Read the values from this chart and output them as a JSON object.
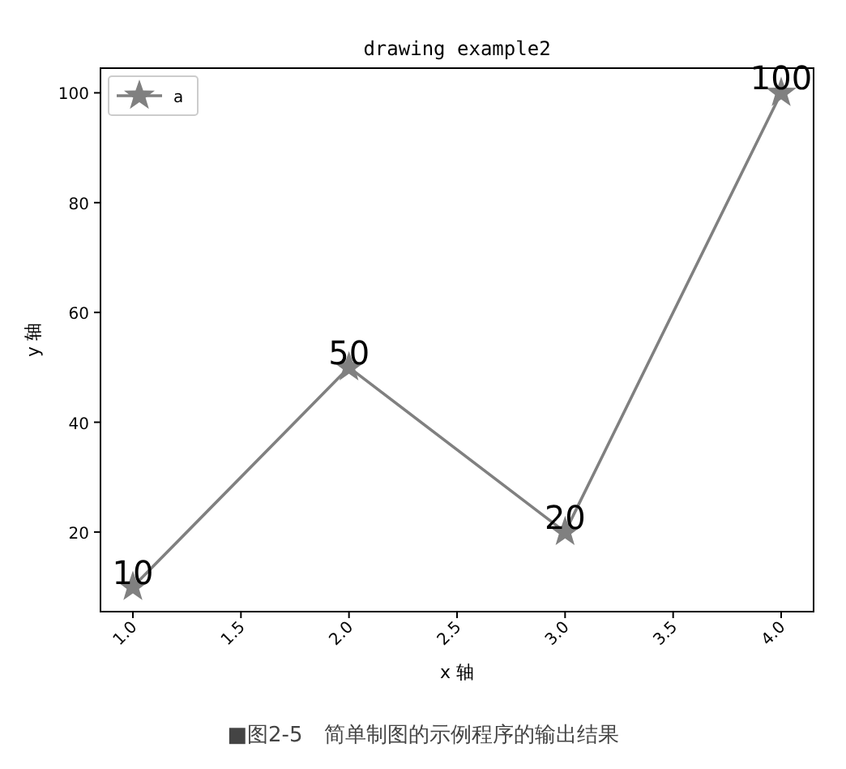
{
  "chart_data": {
    "type": "line",
    "title": "drawing example2",
    "xlabel": "x 轴",
    "ylabel": "y 轴",
    "x": [
      1,
      2,
      3,
      4
    ],
    "series": [
      {
        "name": "a",
        "color": "#808080",
        "values": [
          10,
          50,
          20,
          100
        ]
      }
    ],
    "data_labels": true,
    "marker": "star",
    "line_style": "solid",
    "legend": "top left",
    "grid": false,
    "xlim": [
      0.85,
      4.15
    ],
    "xticks": [
      {
        "value": 1,
        "label": "1.0"
      },
      {
        "value": 1.5,
        "label": "1.5"
      },
      {
        "value": 2,
        "label": "2.0"
      },
      {
        "value": 2.5,
        "label": "2.5"
      },
      {
        "value": 3,
        "label": "3.0"
      },
      {
        "value": 3.5,
        "label": "3.5"
      },
      {
        "value": 4,
        "label": "4.0"
      }
    ],
    "ylim": [
      5.5,
      104.5
    ],
    "yticks": [
      20,
      40,
      60,
      80,
      100
    ],
    "annotations": [
      "■图2-5　简单制图的示例程序的输出结果"
    ]
  }
}
